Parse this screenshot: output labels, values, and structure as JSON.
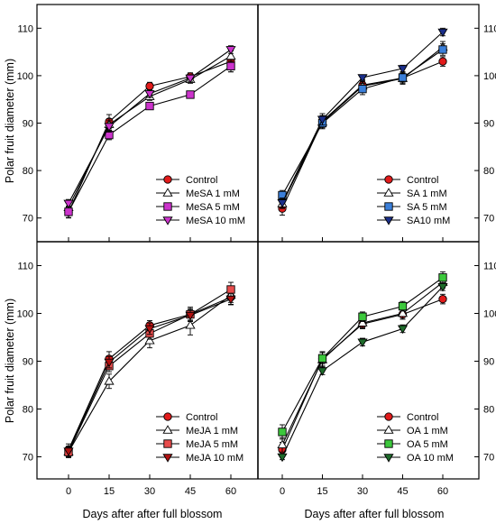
{
  "figure": {
    "ylabel": "Polar fruit diameter (mm)",
    "xlabel": "Days after after full blossom"
  },
  "chart_data": [
    {
      "type": "line",
      "panel": "top-left",
      "x": [
        0,
        15,
        30,
        45,
        60
      ],
      "xticks": [
        "0",
        "15",
        "30",
        "45",
        "60"
      ],
      "ylim": [
        65,
        115
      ],
      "yticks": [
        70,
        80,
        90,
        100,
        110
      ],
      "ylabel": "Polar fruit diameter (mm)",
      "xlabel": "",
      "legend_position": "bottom-right",
      "series": [
        {
          "name": "Control",
          "color": "#e21b1b",
          "marker": "circle",
          "values": [
            71.2,
            90.3,
            97.8,
            99.8,
            103.0
          ],
          "errors": [
            1.2,
            1.5,
            0.8,
            0.8,
            2.2
          ]
        },
        {
          "name": "MeSA 1 mM",
          "color": "#ffffff",
          "marker": "triangle-up",
          "values": [
            72.2,
            89.7,
            95.6,
            99.2,
            104.1
          ],
          "errors": [
            1.0,
            1.2,
            0.8,
            0.8,
            1.2
          ]
        },
        {
          "name": "MeSA 5 mM",
          "color": "#cc33cc",
          "marker": "square",
          "values": [
            71.3,
            87.5,
            93.6,
            96.0,
            102.0
          ],
          "errors": [
            1.2,
            1.0,
            0.7,
            0.7,
            1.2
          ]
        },
        {
          "name": "MeSA 10 mM",
          "color": "#cc33cc",
          "marker": "triangle-down",
          "values": [
            73.1,
            89.3,
            96.2,
            99.5,
            105.5
          ],
          "errors": [
            0.8,
            1.2,
            0.8,
            0.7,
            0.8
          ]
        }
      ]
    },
    {
      "type": "line",
      "panel": "top-right",
      "x": [
        0,
        15,
        30,
        45,
        60
      ],
      "xticks": [
        "0",
        "15",
        "30",
        "45",
        "60"
      ],
      "ylim": [
        65,
        115
      ],
      "yticks": [
        70,
        80,
        90,
        100,
        110
      ],
      "xlabel": "",
      "legend_position": "bottom-right",
      "series": [
        {
          "name": "Control",
          "color": "#e21b1b",
          "marker": "circle",
          "values": [
            72.0,
            90.4,
            98.0,
            99.5,
            103.0
          ],
          "errors": [
            1.4,
            1.2,
            0.9,
            1.0,
            1.0
          ]
        },
        {
          "name": "SA 1 mM",
          "color": "#ffffff",
          "marker": "triangle-up",
          "values": [
            73.0,
            90.2,
            97.8,
            99.4,
            106.0
          ],
          "errors": [
            1.0,
            1.2,
            1.0,
            1.2,
            1.2
          ]
        },
        {
          "name": "SA 5 mM",
          "color": "#3b7fd9",
          "marker": "square",
          "values": [
            74.8,
            90.0,
            97.2,
            99.6,
            105.5
          ],
          "errors": [
            1.0,
            1.2,
            1.2,
            1.2,
            1.2
          ]
        },
        {
          "name": "SA10 mM",
          "color": "#1a2e8a",
          "marker": "triangle-down",
          "values": [
            73.2,
            90.8,
            99.6,
            101.5,
            109.2
          ],
          "errors": [
            1.0,
            1.2,
            0.5,
            0.7,
            0.8
          ]
        }
      ]
    },
    {
      "type": "line",
      "panel": "bottom-left",
      "x": [
        0,
        15,
        30,
        45,
        60
      ],
      "xticks": [
        "0",
        "15",
        "30",
        "45",
        "60"
      ],
      "ylim": [
        65,
        115
      ],
      "yticks": [
        70,
        80,
        90,
        100,
        110
      ],
      "ylabel": "Polar fruit diameter (mm)",
      "xlabel": "Days after after full blossom",
      "legend_position": "bottom-right",
      "series": [
        {
          "name": "Control",
          "color": "#e21b1b",
          "marker": "circle",
          "values": [
            71.5,
            90.5,
            97.5,
            99.8,
            103.4
          ],
          "errors": [
            1.2,
            1.5,
            1.0,
            1.2,
            1.5
          ]
        },
        {
          "name": "MeJA 1 mM",
          "color": "#ffffff",
          "marker": "triangle-up",
          "values": [
            71.0,
            85.8,
            94.3,
            97.5,
            103.8
          ],
          "errors": [
            1.2,
            1.5,
            1.5,
            2.0,
            1.5
          ]
        },
        {
          "name": "MeJA 5 mM",
          "color": "#e84c4c",
          "marker": "square",
          "values": [
            71.0,
            89.0,
            95.8,
            99.8,
            105.0
          ],
          "errors": [
            1.0,
            1.2,
            1.2,
            1.5,
            1.5
          ]
        },
        {
          "name": "MeJA 10 mM",
          "color": "#b01010",
          "marker": "triangle-down",
          "values": [
            71.2,
            89.8,
            96.8,
            99.6,
            103.0
          ],
          "errors": [
            1.0,
            1.2,
            1.2,
            1.2,
            1.2
          ]
        }
      ]
    },
    {
      "type": "line",
      "panel": "bottom-right",
      "x": [
        0,
        15,
        30,
        45,
        60
      ],
      "xticks": [
        "0",
        "15",
        "30",
        "45",
        "60"
      ],
      "ylim": [
        65,
        115
      ],
      "yticks": [
        70,
        80,
        90,
        100,
        110
      ],
      "xlabel": "Days after after full blossom",
      "legend_position": "bottom-right",
      "series": [
        {
          "name": "Control",
          "color": "#e21b1b",
          "marker": "circle",
          "values": [
            71.5,
            90.5,
            97.8,
            99.8,
            103.0
          ],
          "errors": [
            1.5,
            1.5,
            0.8,
            1.0,
            1.0
          ]
        },
        {
          "name": "OA 1 mM",
          "color": "#ffffff",
          "marker": "triangle-up",
          "values": [
            72.5,
            90.3,
            98.0,
            100.0,
            106.5
          ],
          "errors": [
            1.5,
            1.5,
            1.2,
            1.2,
            1.2
          ]
        },
        {
          "name": "OA 5  mM",
          "color": "#3cc83c",
          "marker": "square",
          "values": [
            75.2,
            90.6,
            99.3,
            101.5,
            107.5
          ],
          "errors": [
            1.5,
            1.2,
            1.0,
            1.0,
            1.2
          ]
        },
        {
          "name": "OA 10 mM",
          "color": "#1d6b2a",
          "marker": "triangle-down",
          "values": [
            70.0,
            88.0,
            94.0,
            96.8,
            105.6
          ],
          "errors": [
            0.6,
            0.8,
            0.8,
            0.8,
            0.8
          ]
        }
      ]
    }
  ]
}
